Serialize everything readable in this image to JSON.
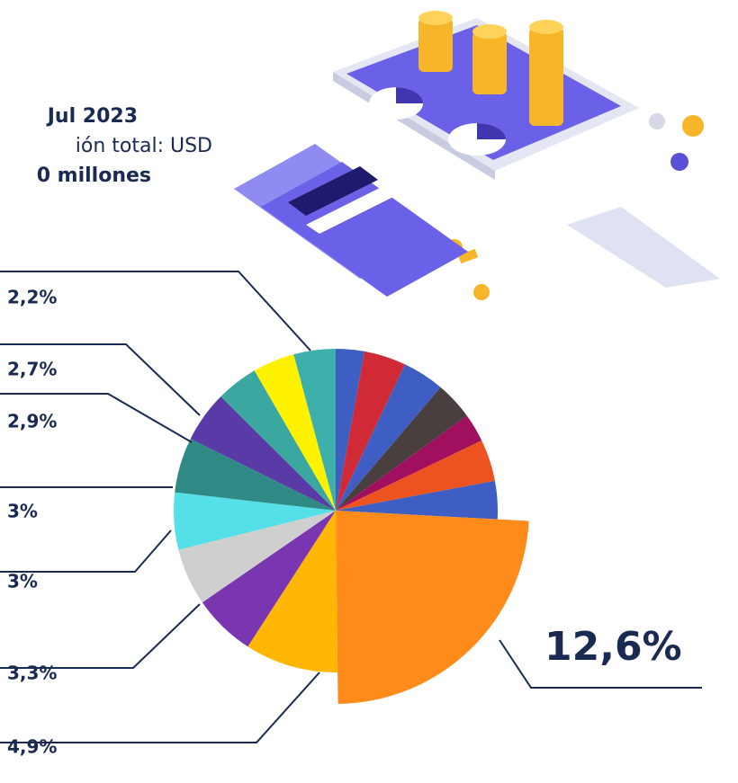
{
  "chart_data": {
    "type": "pie",
    "title": "Jul 2023",
    "subtitle_lines": [
      "ión total: USD",
      "0 millones"
    ],
    "values": [
      1.5,
      2.2,
      2.2,
      2,
      1.5,
      2.2,
      2,
      12.6,
      4.9,
      3.3,
      3,
      3,
      2.9,
      2.7,
      2.2,
      2.2,
      2.2
    ],
    "value_labels": [
      null,
      null,
      null,
      null,
      null,
      null,
      null,
      "12,6%",
      "4,9%",
      "3,3%",
      "3%",
      "3%",
      "2,9%",
      "2,7%",
      null,
      null,
      "2,2%"
    ],
    "colors": [
      "#3f5ec4",
      "#d02a36",
      "#3f5ec4",
      "#4a3f3f",
      "#a0105e",
      "#ec5320",
      "#3f5ec4",
      "#ff8c1a",
      "#ffb703",
      "#7a35b0",
      "#cfcfcf",
      "#55e0e8",
      "#2f8a86",
      "#5a3aa6",
      "#3aa8a0",
      "#fff200",
      "#3eb0ac"
    ],
    "exploded_index": 7
  }
}
